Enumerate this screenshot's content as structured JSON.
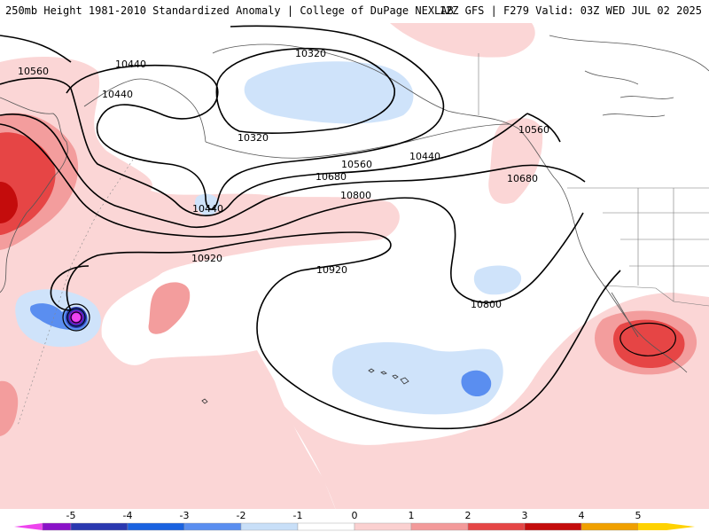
{
  "header": {
    "title_left": "250mb Height 1981-2010 Standardized Anomaly | College of DuPage NEXLAB",
    "title_right": "12Z GFS | F279 Valid: 03Z WED JUL 02 2025"
  },
  "contours": {
    "labels": [
      "10320",
      "10320",
      "10440",
      "10440",
      "10440",
      "10440",
      "10560",
      "10560",
      "10560",
      "10680",
      "10680",
      "10800",
      "10800",
      "10920",
      "10920"
    ]
  },
  "colorbar": {
    "ticks": [
      "-5",
      "-4",
      "-3",
      "-2",
      "-1",
      "0",
      "1",
      "2",
      "3",
      "4",
      "5"
    ],
    "colors": [
      "#ee44ee",
      "#8a12c8",
      "#2a38b0",
      "#1a62e0",
      "#5a8ef0",
      "#c8dff8",
      "#ffffff",
      "#fbd0d0",
      "#f39a9a",
      "#e54545",
      "#c40c0c",
      "#f0a000",
      "#ffd200"
    ]
  },
  "palette": {
    "anom_pos_light": "#fbd6d6",
    "anom_pos_mid": "#f39d9d",
    "anom_pos_strong": "#e64545",
    "anom_pos_max": "#c40c0c",
    "anom_neg_light": "#cfe3fa",
    "anom_neg_mid": "#5a8ef0",
    "coast": "#555555"
  }
}
